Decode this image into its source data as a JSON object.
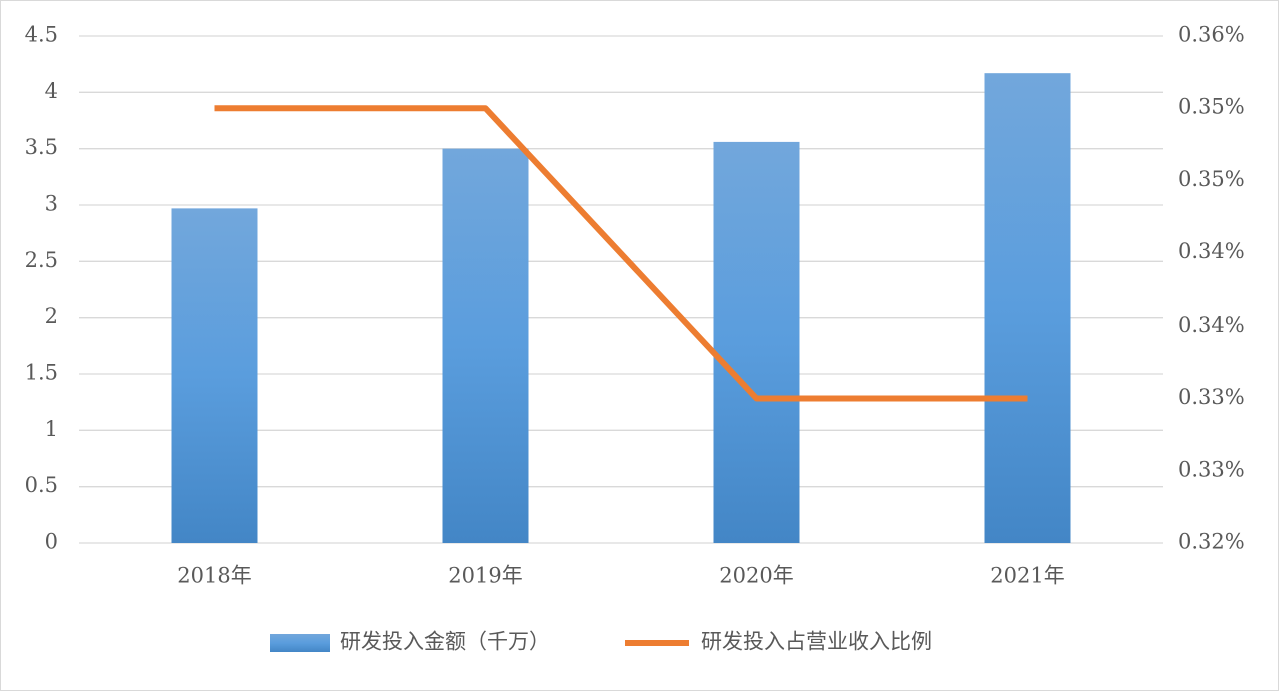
{
  "chart_data": {
    "type": "bar+line",
    "categories": [
      "2018年",
      "2019年",
      "2020年",
      "2021年"
    ],
    "series": [
      {
        "name": "研发投入金额（千万）",
        "type": "bar",
        "color": "#5b9bd5",
        "values": [
          2.97,
          3.5,
          3.56,
          4.17
        ]
      },
      {
        "name": "研发投入占营业收入比例",
        "type": "line",
        "color": "#ed7d31",
        "axis": "y2",
        "values": [
          0.3543,
          0.3543,
          0.3314,
          0.3314
        ]
      }
    ],
    "ylim": [
      0,
      4.5
    ],
    "yticks": [
      0,
      0.5,
      1,
      1.5,
      2,
      2.5,
      3,
      3.5,
      4,
      4.5
    ],
    "y2lim": [
      0.32,
      0.36
    ],
    "y2ticks": [
      {
        "value": 0.32,
        "label": "0.32%"
      },
      {
        "value": 0.3257,
        "label": "0.33%"
      },
      {
        "value": 0.3314,
        "label": "0.33%"
      },
      {
        "value": 0.3371,
        "label": "0.34%"
      },
      {
        "value": 0.3429,
        "label": "0.34%"
      },
      {
        "value": 0.3486,
        "label": "0.35%"
      },
      {
        "value": 0.3543,
        "label": "0.35%"
      },
      {
        "value": 0.36,
        "label": "0.36%"
      }
    ],
    "grid": true,
    "legend": "bottom"
  }
}
